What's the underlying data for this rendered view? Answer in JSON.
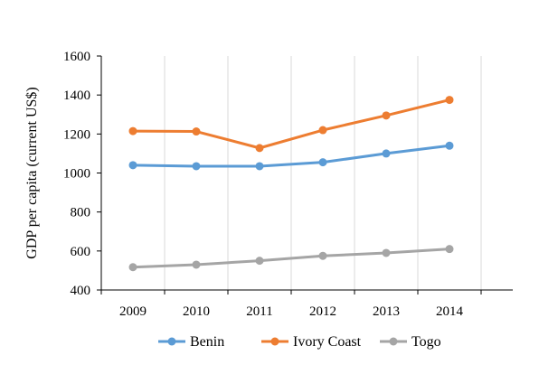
{
  "chart_data": {
    "type": "line",
    "title": "",
    "xlabel": "",
    "ylabel": "GDP per capita (current US$)",
    "x": [
      "2009",
      "2010",
      "2011",
      "2012",
      "2013",
      "2014"
    ],
    "ylim": [
      400,
      1600
    ],
    "yticks": [
      400,
      600,
      800,
      1000,
      1200,
      1400,
      1600
    ],
    "grid": "vertical",
    "legend_position": "bottom",
    "series": [
      {
        "name": "Benin",
        "color": "#5B9BD5",
        "values": [
          1040,
          1035,
          1035,
          1055,
          1100,
          1140
        ]
      },
      {
        "name": "Ivory Coast",
        "color": "#ED7D31",
        "values": [
          1215,
          1213,
          1128,
          1220,
          1295,
          1375
        ]
      },
      {
        "name": "Togo",
        "color": "#A5A5A5",
        "values": [
          517,
          530,
          550,
          575,
          590,
          610
        ]
      }
    ]
  }
}
